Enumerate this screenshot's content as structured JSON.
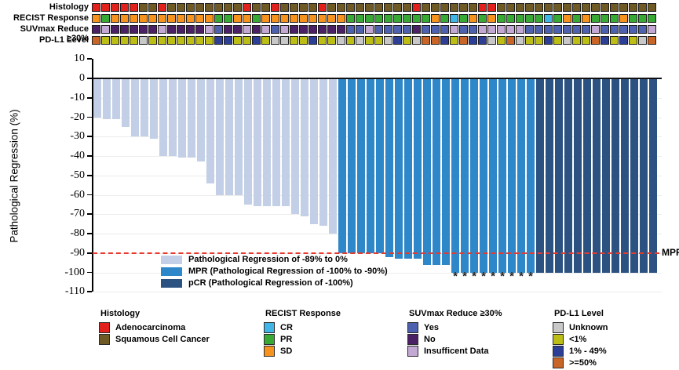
{
  "tracks": {
    "rows": [
      {
        "id": "histology",
        "label": "Histology",
        "codes": {
          "A": {
            "name": "Adenocarcinoma",
            "color": "#e2201c"
          },
          "S": {
            "name": "Squamous Cell Cancer",
            "color": "#6f5a25"
          }
        },
        "sequence": "AAAAASSASSSSSSSSASSASSSSASSSSSSSSSASSSSSSAASSSSSSSSSSSSSSSSS"
      },
      {
        "id": "recist-response",
        "label": "RECIST Response",
        "codes": {
          "C": {
            "name": "CR",
            "color": "#41b6e6"
          },
          "P": {
            "name": "PR",
            "color": "#39a935"
          },
          "S": {
            "name": "SD",
            "color": "#f6921e"
          }
        },
        "sequence": "SPSSSSSSSSSSSPPSSPSSSSSSSSSPPPPPPPPPSPCPSPSPPPPPCPSPSPPPSPPP"
      },
      {
        "id": "suvmax-reduce",
        "label": "SUVmax Reduce ≥30%",
        "codes": {
          "Y": {
            "name": "Yes",
            "color": "#4d61ae"
          },
          "N": {
            "name": "No",
            "color": "#4b2064"
          },
          "I": {
            "name": "Insufficent Data",
            "color": "#c3a8d4"
          }
        },
        "sequence": "NINNNNNINNNNIYNNINIYINNNNNNYYIYYYYNYYYIYYIIIIIYYYYYYYIYYYYYI"
      },
      {
        "id": "pdl1-level",
        "label": "PD-L1 Level",
        "codes": {
          "U": {
            "name": "Unknown",
            "color": "#c8c8c8"
          },
          "L": {
            "name": "<1%",
            "color": "#bcbe16"
          },
          "M": {
            "name": "1% - 49%",
            "color": "#2c3e96"
          },
          "H": {
            "name": ">=50%",
            "color": "#c96526"
          }
        },
        "sequence": "HLLLLULLLLLLLMMLLMLUULLMLLULULLUMLUHHMLHMMULHULLMLULLHMLMLUH"
      }
    ]
  },
  "chart_data": {
    "type": "bar",
    "title": "",
    "xlabel": "",
    "ylabel": "Pathological Regression (%)",
    "ylim": [
      -110,
      10
    ],
    "yticks": [
      10,
      0,
      -10,
      -20,
      -30,
      -40,
      -50,
      -60,
      -70,
      -80,
      -90,
      -100,
      -110
    ],
    "grid": "horizontal",
    "values": [
      -20,
      -21,
      -21,
      -25,
      -30,
      -30,
      -31,
      -40,
      -40,
      -41,
      -41,
      -43,
      -54,
      -60,
      -60,
      -60,
      -65,
      -66,
      -66,
      -66,
      -66,
      -70,
      -71,
      -75,
      -76,
      -80,
      -90,
      -90,
      -90,
      -90,
      -90,
      -92,
      -93,
      -93,
      -93,
      -96,
      -96,
      -96,
      -100,
      -100,
      -100,
      -100,
      -100,
      -100,
      -100,
      -100,
      -100,
      -100,
      -100,
      -100,
      -100,
      -100,
      -100,
      -100,
      -100,
      -100,
      -100,
      -100,
      -100,
      -100
    ],
    "groups": [
      {
        "name": "Pathological Regression of -89% to 0%",
        "color": "#c3cfe6",
        "bars": [
          1,
          26
        ]
      },
      {
        "name": "MPR (Pathological Regression of -100% to -90%)",
        "color": "#2e87c8",
        "bars": [
          27,
          47
        ]
      },
      {
        "name": "pCR (Pathological Regression of -100%)",
        "color": "#2c5282",
        "bars": [
          48,
          60
        ]
      }
    ],
    "reference_line": {
      "value": -90,
      "label": "MPR",
      "color": "#e8392e",
      "style": "dashed"
    },
    "asterisk_bars": [
      39,
      40,
      41,
      42,
      43,
      44,
      45,
      46,
      47
    ],
    "asterisk_symbol": "*",
    "legend_position": "inside bottom-left"
  },
  "bottom_legend": [
    {
      "title": "Histology",
      "items": [
        {
          "label": "Adenocarcinoma",
          "color": "#e2201c"
        },
        {
          "label": "Squamous Cell Cancer",
          "color": "#6f5a25"
        }
      ]
    },
    {
      "title": "RECIST Response",
      "items": [
        {
          "label": "CR",
          "color": "#41b6e6"
        },
        {
          "label": "PR",
          "color": "#39a935"
        },
        {
          "label": "SD",
          "color": "#f6921e"
        }
      ]
    },
    {
      "title": "SUVmax Reduce ≥30%",
      "items": [
        {
          "label": "Yes",
          "color": "#4d61ae"
        },
        {
          "label": "No",
          "color": "#4b2064"
        },
        {
          "label": "Insufficent Data",
          "color": "#c3a8d4"
        }
      ]
    },
    {
      "title": "PD-L1 Level",
      "items": [
        {
          "label": "Unknown",
          "color": "#c8c8c8"
        },
        {
          "label": "<1%",
          "color": "#bcbe16"
        },
        {
          "label": "1% - 49%",
          "color": "#2c3e96"
        },
        {
          "label": ">=50%",
          "color": "#c96526"
        }
      ]
    }
  ]
}
